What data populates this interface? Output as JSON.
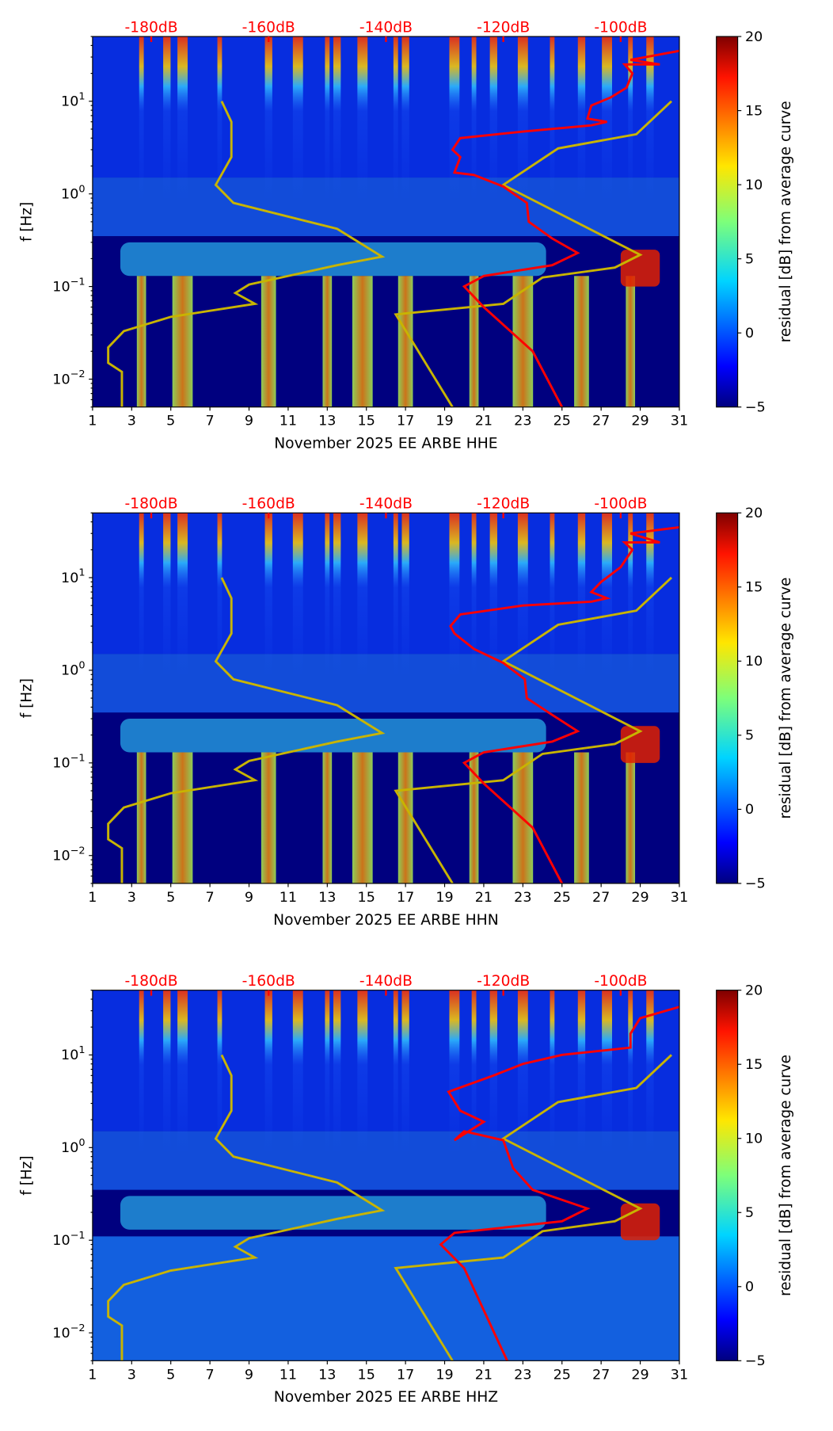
{
  "chart_data": [
    {
      "type": "heatmap",
      "xlabel": "November 2025 EE ARBE  HHE",
      "ylabel": "f [Hz]",
      "xticks": [
        "1",
        "3",
        "5",
        "7",
        "9",
        "11",
        "13",
        "15",
        "17",
        "19",
        "21",
        "23",
        "25",
        "27",
        "29",
        "31"
      ],
      "xlim": [
        1,
        31
      ],
      "ylim": [
        0.005,
        50
      ],
      "yscale": "log",
      "yticks": [
        {
          "value": 0.01,
          "base": "10",
          "exp": "−2"
        },
        {
          "value": 0.1,
          "base": "10",
          "exp": "−1"
        },
        {
          "value": 1,
          "base": "10",
          "exp": "0"
        },
        {
          "value": 10,
          "base": "10",
          "exp": "1"
        }
      ],
      "top_labels": [
        {
          "day": 4,
          "text": "-180dB"
        },
        {
          "day": 10,
          "text": "-160dB"
        },
        {
          "day": 16,
          "text": "-140dB"
        },
        {
          "day": 22,
          "text": "-120dB"
        },
        {
          "day": 28,
          "text": "-100dB"
        }
      ],
      "colorbar": {
        "label": "residual [dB] from average curve",
        "range": [
          -5,
          20
        ],
        "ticks": [
          "−5",
          "0",
          "5",
          "10",
          "15",
          "20"
        ]
      },
      "yellow_curve": [
        [
          [
            7.6,
            10
          ],
          [
            8.1,
            6
          ],
          [
            8.1,
            2.5
          ],
          [
            7.3,
            1.25
          ],
          [
            8.2,
            0.8
          ],
          [
            13.5,
            0.42
          ],
          [
            15.8,
            0.21
          ],
          [
            13.5,
            0.17
          ],
          [
            9,
            0.105
          ],
          [
            8.3,
            0.085
          ],
          [
            9.3,
            0.065
          ],
          [
            5,
            0.047
          ],
          [
            2.6,
            0.033
          ],
          [
            1.8,
            0.022
          ],
          [
            1.8,
            0.015
          ],
          [
            2.5,
            0.012
          ],
          [
            2.5,
            0.005
          ]
        ],
        [
          [
            19.4,
            0.005
          ],
          [
            16.5,
            0.05
          ],
          [
            22,
            0.065
          ],
          [
            24,
            0.125
          ],
          [
            27.7,
            0.16
          ],
          [
            29,
            0.22
          ],
          [
            22,
            1.25
          ],
          [
            24.8,
            3.1
          ],
          [
            28.8,
            4.4
          ],
          [
            30.6,
            10
          ]
        ]
      ],
      "red_curve": [
        [
          25,
          0.005
        ],
        [
          23.5,
          0.02
        ],
        [
          21,
          0.06
        ],
        [
          20,
          0.1
        ],
        [
          21,
          0.13
        ],
        [
          24.5,
          0.17
        ],
        [
          25.8,
          0.23
        ],
        [
          24.5,
          0.33
        ],
        [
          23.3,
          0.5
        ],
        [
          23.2,
          0.8
        ],
        [
          22,
          1.2
        ],
        [
          20.5,
          1.6
        ],
        [
          19.5,
          1.7
        ],
        [
          19.8,
          2.5
        ],
        [
          19.4,
          3
        ],
        [
          19.8,
          4
        ],
        [
          23,
          4.7
        ],
        [
          26.5,
          5.5
        ],
        [
          27.3,
          6
        ],
        [
          26.3,
          6.5
        ],
        [
          26.5,
          9
        ],
        [
          27.5,
          11
        ],
        [
          28.3,
          14
        ],
        [
          28.6,
          20
        ],
        [
          28.2,
          25
        ],
        [
          30,
          25
        ],
        [
          28.5,
          28
        ],
        [
          31,
          35
        ]
      ],
      "bright_days": [
        3.5,
        4.8,
        5.6,
        7.5,
        10,
        11.5,
        13,
        13.5,
        14.8,
        16.5,
        17,
        19.5,
        20.5,
        21.5,
        23,
        24.5,
        26,
        27.3,
        28.5,
        29.5
      ]
    },
    {
      "type": "heatmap",
      "xlabel": "November 2025 EE ARBE  HHN",
      "ylabel": "f [Hz]",
      "xticks": [
        "1",
        "3",
        "5",
        "7",
        "9",
        "11",
        "13",
        "15",
        "17",
        "19",
        "21",
        "23",
        "25",
        "27",
        "29",
        "31"
      ],
      "xlim": [
        1,
        31
      ],
      "ylim": [
        0.005,
        50
      ],
      "yscale": "log",
      "yticks": [
        {
          "value": 0.01,
          "base": "10",
          "exp": "−2"
        },
        {
          "value": 0.1,
          "base": "10",
          "exp": "−1"
        },
        {
          "value": 1,
          "base": "10",
          "exp": "0"
        },
        {
          "value": 10,
          "base": "10",
          "exp": "1"
        }
      ],
      "top_labels": [
        {
          "day": 4,
          "text": "-180dB"
        },
        {
          "day": 10,
          "text": "-160dB"
        },
        {
          "day": 16,
          "text": "-140dB"
        },
        {
          "day": 22,
          "text": "-120dB"
        },
        {
          "day": 28,
          "text": "-100dB"
        }
      ],
      "colorbar": {
        "label": "residual [dB] from average curve",
        "range": [
          -5,
          20
        ],
        "ticks": [
          "−5",
          "0",
          "5",
          "10",
          "15",
          "20"
        ]
      },
      "yellow_curve": [
        [
          [
            7.6,
            10
          ],
          [
            8.1,
            6
          ],
          [
            8.1,
            2.5
          ],
          [
            7.3,
            1.25
          ],
          [
            8.2,
            0.8
          ],
          [
            13.5,
            0.42
          ],
          [
            15.8,
            0.21
          ],
          [
            13.5,
            0.17
          ],
          [
            9,
            0.105
          ],
          [
            8.3,
            0.085
          ],
          [
            9.3,
            0.065
          ],
          [
            5,
            0.047
          ],
          [
            2.6,
            0.033
          ],
          [
            1.8,
            0.022
          ],
          [
            1.8,
            0.015
          ],
          [
            2.5,
            0.012
          ],
          [
            2.5,
            0.005
          ]
        ],
        [
          [
            19.4,
            0.005
          ],
          [
            16.5,
            0.05
          ],
          [
            22,
            0.065
          ],
          [
            24,
            0.125
          ],
          [
            27.7,
            0.16
          ],
          [
            29,
            0.22
          ],
          [
            22,
            1.25
          ],
          [
            24.8,
            3.1
          ],
          [
            28.8,
            4.4
          ],
          [
            30.6,
            10
          ]
        ]
      ],
      "red_curve": [
        [
          25,
          0.005
        ],
        [
          23.5,
          0.02
        ],
        [
          21,
          0.06
        ],
        [
          20,
          0.1
        ],
        [
          21,
          0.13
        ],
        [
          24.5,
          0.17
        ],
        [
          25.8,
          0.22
        ],
        [
          24.5,
          0.33
        ],
        [
          23.2,
          0.5
        ],
        [
          23.1,
          0.8
        ],
        [
          22,
          1.2
        ],
        [
          20.5,
          1.7
        ],
        [
          19.5,
          2.5
        ],
        [
          19.3,
          3
        ],
        [
          19.8,
          4
        ],
        [
          23,
          5
        ],
        [
          26.5,
          5.5
        ],
        [
          27.3,
          6
        ],
        [
          26.5,
          7
        ],
        [
          27,
          9
        ],
        [
          28,
          13
        ],
        [
          28.6,
          20
        ],
        [
          28.2,
          24
        ],
        [
          30,
          24
        ],
        [
          28.5,
          30
        ],
        [
          31,
          35
        ]
      ],
      "bright_days": [
        3.5,
        4.8,
        5.6,
        7.5,
        10,
        11.5,
        13,
        13.5,
        14.8,
        16.5,
        17,
        19.5,
        20.5,
        21.5,
        23,
        24.5,
        26,
        27.3,
        28.5,
        29.5
      ]
    },
    {
      "type": "heatmap",
      "xlabel": "November 2025 EE ARBE  HHZ",
      "ylabel": "f [Hz]",
      "xticks": [
        "1",
        "3",
        "5",
        "7",
        "9",
        "11",
        "13",
        "15",
        "17",
        "19",
        "21",
        "23",
        "25",
        "27",
        "29",
        "31"
      ],
      "xlim": [
        1,
        31
      ],
      "ylim": [
        0.005,
        50
      ],
      "yscale": "log",
      "yticks": [
        {
          "value": 0.01,
          "base": "10",
          "exp": "−2"
        },
        {
          "value": 0.1,
          "base": "10",
          "exp": "−1"
        },
        {
          "value": 1,
          "base": "10",
          "exp": "0"
        },
        {
          "value": 10,
          "base": "10",
          "exp": "1"
        }
      ],
      "top_labels": [
        {
          "day": 4,
          "text": "-180dB"
        },
        {
          "day": 10,
          "text": "-160dB"
        },
        {
          "day": 16,
          "text": "-140dB"
        },
        {
          "day": 22,
          "text": "-120dB"
        },
        {
          "day": 28,
          "text": "-100dB"
        }
      ],
      "colorbar": {
        "label": "residual [dB] from average curve",
        "range": [
          -5,
          20
        ],
        "ticks": [
          "−5",
          "0",
          "5",
          "10",
          "15",
          "20"
        ]
      },
      "yellow_curve": [
        [
          [
            7.6,
            10
          ],
          [
            8.1,
            6
          ],
          [
            8.1,
            2.5
          ],
          [
            7.3,
            1.25
          ],
          [
            8.2,
            0.8
          ],
          [
            13.5,
            0.42
          ],
          [
            15.8,
            0.21
          ],
          [
            13.5,
            0.17
          ],
          [
            9,
            0.105
          ],
          [
            8.3,
            0.085
          ],
          [
            9.3,
            0.065
          ],
          [
            5,
            0.047
          ],
          [
            2.6,
            0.033
          ],
          [
            1.8,
            0.022
          ],
          [
            1.8,
            0.015
          ],
          [
            2.5,
            0.012
          ],
          [
            2.5,
            0.005
          ]
        ],
        [
          [
            19.4,
            0.005
          ],
          [
            16.5,
            0.05
          ],
          [
            22,
            0.065
          ],
          [
            24,
            0.125
          ],
          [
            27.7,
            0.16
          ],
          [
            29,
            0.22
          ],
          [
            22,
            1.25
          ],
          [
            24.8,
            3.1
          ],
          [
            28.8,
            4.4
          ],
          [
            30.6,
            10
          ]
        ]
      ],
      "red_curve": [
        [
          22.2,
          0.005
        ],
        [
          20,
          0.05
        ],
        [
          18.8,
          0.09
        ],
        [
          19.5,
          0.12
        ],
        [
          25,
          0.16
        ],
        [
          26.3,
          0.22
        ],
        [
          23.5,
          0.35
        ],
        [
          22.5,
          0.6
        ],
        [
          22,
          1.2
        ],
        [
          20,
          1.5
        ],
        [
          19.5,
          1.2
        ],
        [
          21,
          1.9
        ],
        [
          19.8,
          2.5
        ],
        [
          19.2,
          4
        ],
        [
          21.5,
          6
        ],
        [
          23,
          8
        ],
        [
          25,
          10
        ],
        [
          28.5,
          12
        ],
        [
          28.5,
          17
        ],
        [
          29,
          25
        ],
        [
          31,
          33
        ]
      ],
      "bright_days": [
        3.5,
        4.8,
        5.6,
        7.5,
        10,
        11.5,
        13,
        13.5,
        14.8,
        16.5,
        17,
        19.5,
        20.5,
        21.5,
        23,
        24.5,
        26,
        27.3,
        28.5,
        29.5
      ]
    }
  ]
}
